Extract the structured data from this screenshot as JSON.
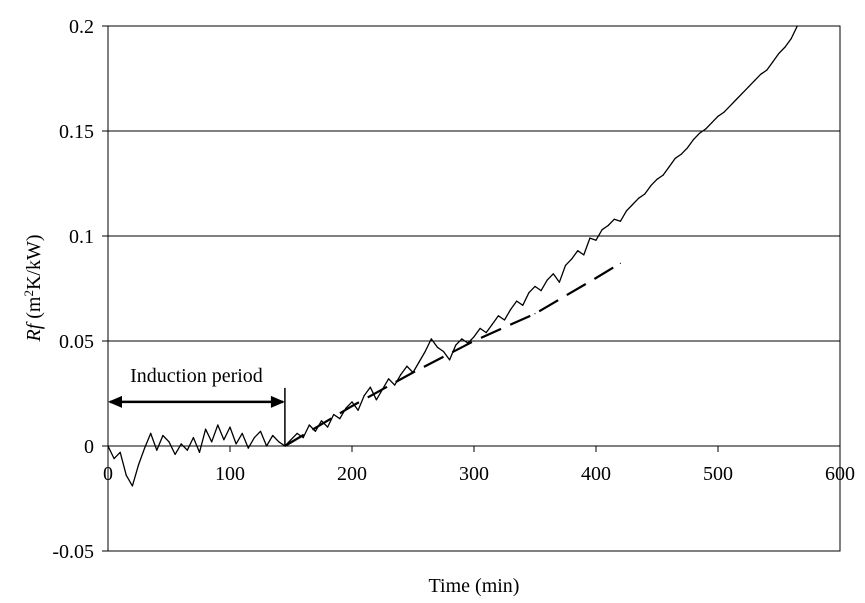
{
  "chart_data": {
    "type": "line",
    "title": "",
    "xlabel": "Time (min)",
    "ylabel": {
      "italic": "Rf",
      "prefix": " (m",
      "sup": "2",
      "suffix": "K/kW)"
    },
    "xlim": [
      0,
      600
    ],
    "ylim": [
      -0.05,
      0.2
    ],
    "x_ticks": [
      {
        "v": 0,
        "label": "0"
      },
      {
        "v": 100,
        "label": "100"
      },
      {
        "v": 200,
        "label": "200"
      },
      {
        "v": 300,
        "label": "300"
      },
      {
        "v": 400,
        "label": "400"
      },
      {
        "v": 500,
        "label": "500"
      },
      {
        "v": 600,
        "label": "600"
      }
    ],
    "y_ticks": [
      {
        "v": -0.05,
        "label": "-0.05"
      },
      {
        "v": 0,
        "label": "0"
      },
      {
        "v": 0.05,
        "label": "0.05"
      },
      {
        "v": 0.1,
        "label": "0.1"
      },
      {
        "v": 0.15,
        "label": "0.15"
      },
      {
        "v": 0.2,
        "label": "0.2"
      }
    ],
    "grid": {
      "horizontal": true,
      "vertical": false
    },
    "legend": "none",
    "series": [
      {
        "style": "solid",
        "x": [
          0,
          5,
          10,
          15,
          20,
          25,
          30,
          35,
          40,
          45,
          50,
          55,
          60,
          65,
          70,
          75,
          80,
          85,
          90,
          95,
          100,
          105,
          110,
          115,
          120,
          125,
          130,
          135,
          140,
          145,
          150,
          155,
          160,
          165,
          170,
          175,
          180,
          185,
          190,
          195,
          200,
          205,
          210,
          215,
          220,
          225,
          230,
          235,
          240,
          245,
          250,
          255,
          260,
          265,
          270,
          275,
          280,
          285,
          290,
          295,
          300,
          305,
          310,
          315,
          320,
          325,
          330,
          335,
          340,
          345,
          350,
          355,
          360,
          365,
          370,
          375,
          380,
          385,
          390,
          395,
          400,
          405,
          410,
          415,
          420,
          425,
          430,
          435,
          440,
          445,
          450,
          455,
          460,
          465,
          470,
          475,
          480,
          485,
          490,
          495,
          500,
          505,
          510,
          515,
          520,
          525,
          530,
          535,
          540,
          545,
          550,
          555,
          560,
          565
        ],
        "y": [
          0.0,
          -0.006,
          -0.003,
          -0.014,
          -0.019,
          -0.009,
          -0.001,
          0.006,
          -0.002,
          0.005,
          0.002,
          -0.004,
          0.001,
          -0.002,
          0.004,
          -0.003,
          0.008,
          0.002,
          0.01,
          0.003,
          0.009,
          0.001,
          0.006,
          -0.001,
          0.004,
          0.007,
          0.0,
          0.005,
          0.002,
          0.0,
          0.003,
          0.006,
          0.004,
          0.01,
          0.007,
          0.012,
          0.009,
          0.015,
          0.013,
          0.018,
          0.021,
          0.017,
          0.024,
          0.028,
          0.022,
          0.027,
          0.032,
          0.029,
          0.034,
          0.038,
          0.035,
          0.04,
          0.045,
          0.051,
          0.047,
          0.045,
          0.041,
          0.048,
          0.051,
          0.049,
          0.052,
          0.056,
          0.054,
          0.058,
          0.062,
          0.06,
          0.065,
          0.069,
          0.067,
          0.073,
          0.076,
          0.074,
          0.079,
          0.082,
          0.078,
          0.086,
          0.089,
          0.093,
          0.091,
          0.099,
          0.098,
          0.103,
          0.105,
          0.108,
          0.107,
          0.112,
          0.115,
          0.118,
          0.12,
          0.124,
          0.127,
          0.129,
          0.133,
          0.137,
          0.139,
          0.142,
          0.146,
          0.149,
          0.151,
          0.154,
          0.157,
          0.159,
          0.162,
          0.165,
          0.168,
          0.171,
          0.174,
          0.177,
          0.179,
          0.183,
          0.187,
          0.19,
          0.194,
          0.2
        ]
      },
      {
        "style": "dashed",
        "x": [
          145,
          200,
          250,
          300,
          350,
          400,
          420
        ],
        "y": [
          0.0,
          0.019,
          0.035,
          0.05,
          0.063,
          0.08,
          0.087
        ]
      }
    ],
    "annotations": [
      {
        "text": "Induction period",
        "type": "double-arrow",
        "x_start": 0,
        "x_end": 145,
        "y": 0.021,
        "marker_x": 145,
        "marker_y_range": [
          0,
          0.021
        ]
      }
    ]
  }
}
